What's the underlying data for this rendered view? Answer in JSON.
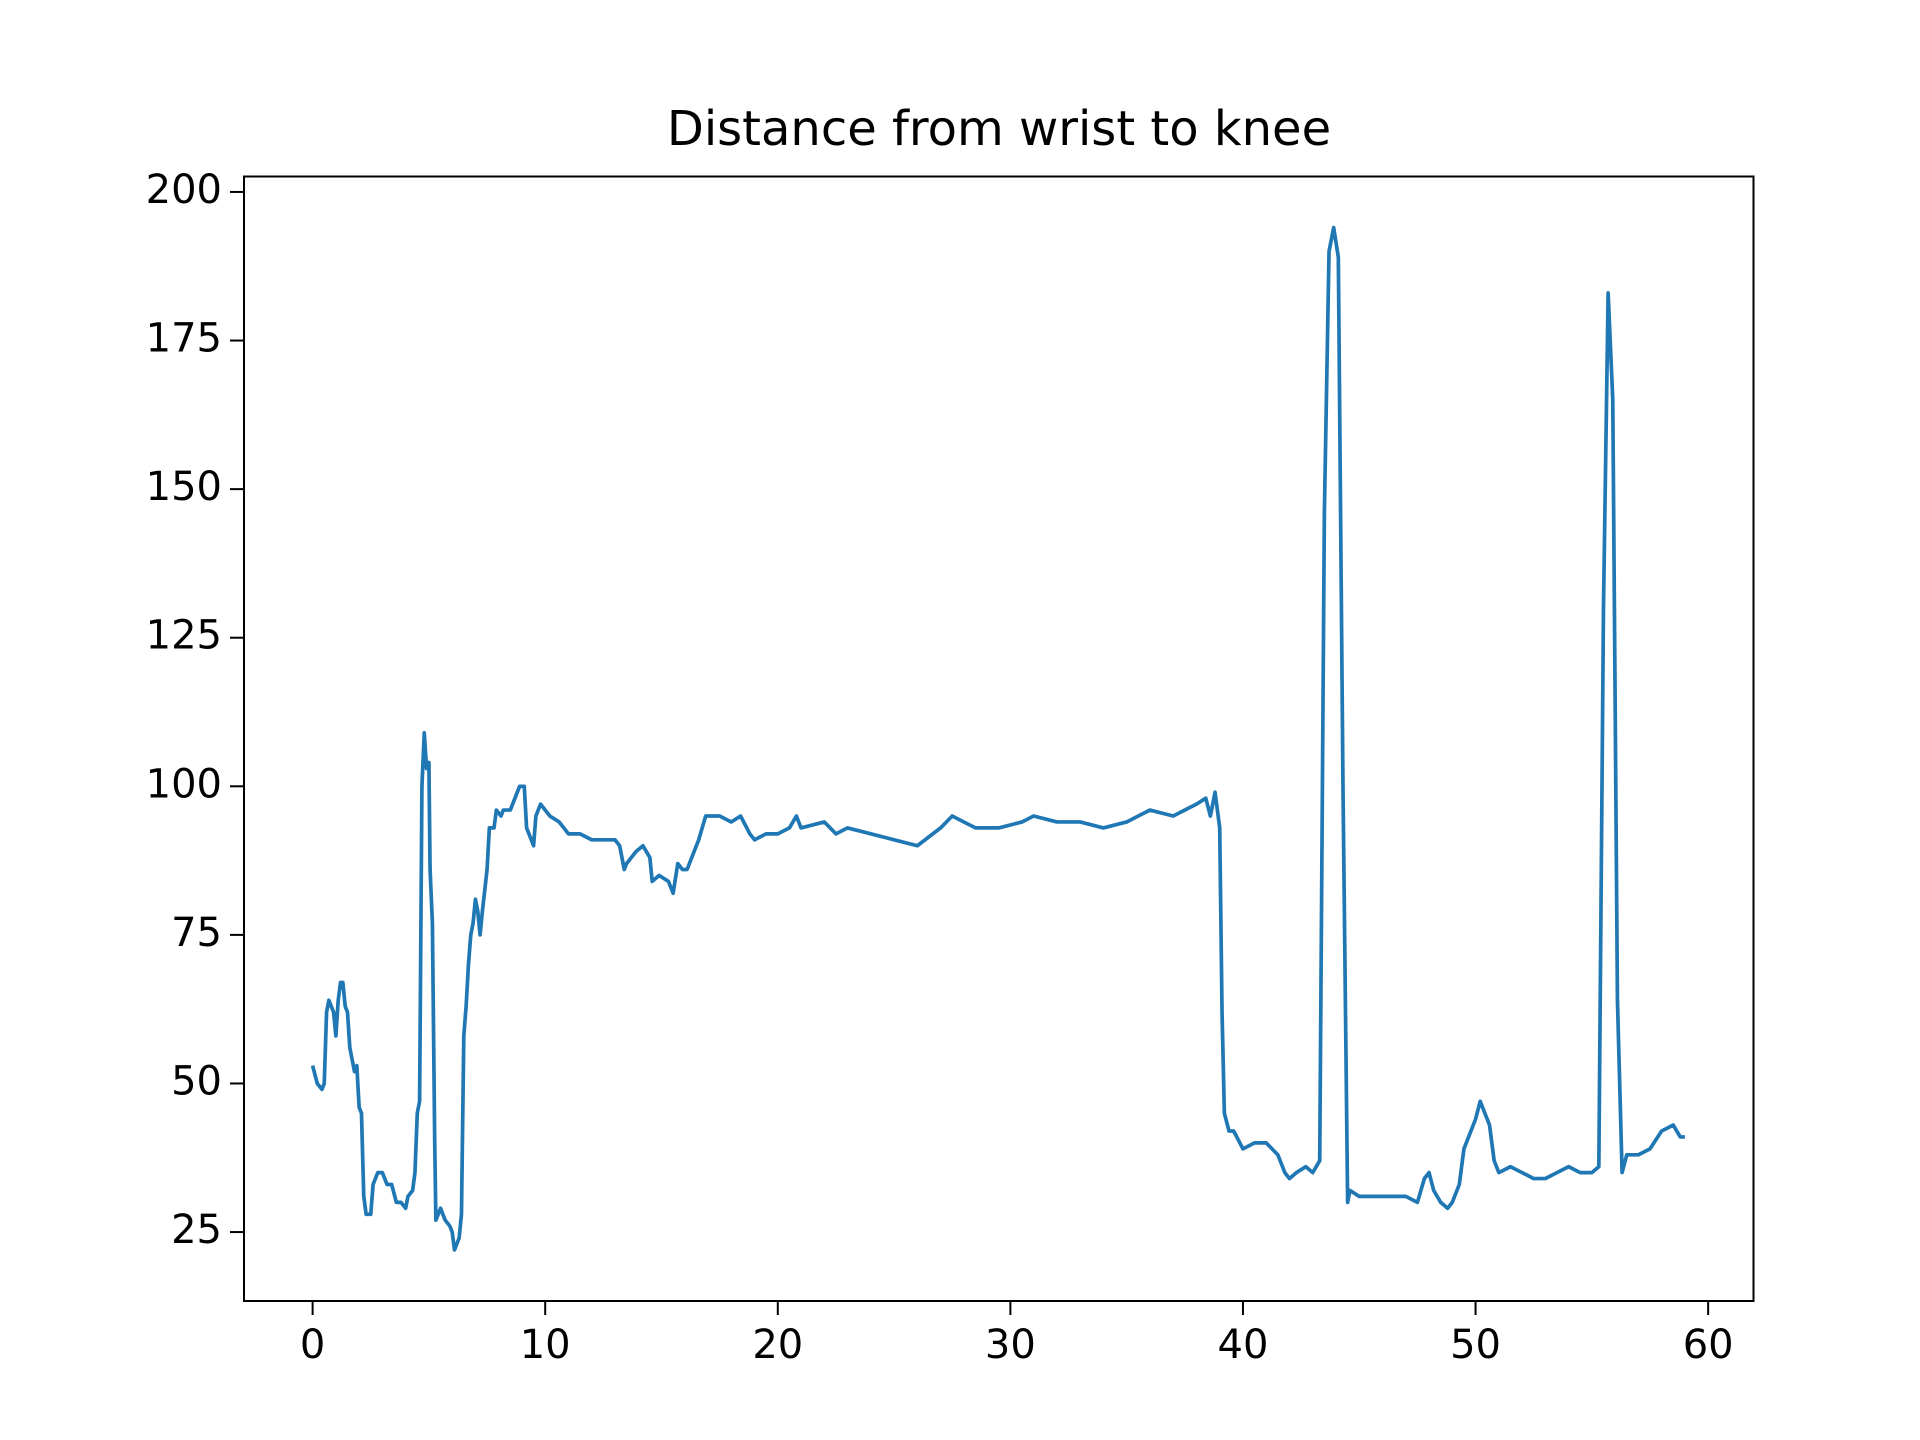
{
  "chart_data": {
    "type": "line",
    "title": "Distance from wrist to knee",
    "x": [
      0,
      0.2,
      0.4,
      0.5,
      0.6,
      0.7,
      0.9,
      1.0,
      1.1,
      1.2,
      1.3,
      1.4,
      1.5,
      1.6,
      1.8,
      1.9,
      2.0,
      2.1,
      2.2,
      2.3,
      2.5,
      2.6,
      2.8,
      3.0,
      3.1,
      3.2,
      3.4,
      3.6,
      3.8,
      4.0,
      4.1,
      4.3,
      4.4,
      4.5,
      4.6,
      4.7,
      4.8,
      4.9,
      5.0,
      5.05,
      5.15,
      5.25,
      5.3,
      5.5,
      5.7,
      5.9,
      6.0,
      6.1,
      6.2,
      6.3,
      6.4,
      6.5,
      6.6,
      6.7,
      6.8,
      6.9,
      7.0,
      7.1,
      7.2,
      7.3,
      7.5,
      7.6,
      7.8,
      7.9,
      8.1,
      8.2,
      8.5,
      8.7,
      8.9,
      9.1,
      9.2,
      9.3,
      9.5,
      9.6,
      9.8,
      10.0,
      10.2,
      10.6,
      10.8,
      11.0,
      11.5,
      12.0,
      12.5,
      13.0,
      13.2,
      13.4,
      13.5,
      13.7,
      13.9,
      14.2,
      14.5,
      14.6,
      14.9,
      15.3,
      15.5,
      15.7,
      15.9,
      16.1,
      16.4,
      16.6,
      16.9,
      17.5,
      18.0,
      18.4,
      18.8,
      19.0,
      19.5,
      20.0,
      20.5,
      20.8,
      21.0,
      22.0,
      22.5,
      23.0,
      24.0,
      25.0,
      26.0,
      27.0,
      27.5,
      28.0,
      28.5,
      29.5,
      30.5,
      31.0,
      32.0,
      33.0,
      34.0,
      35.0,
      35.5,
      36.0,
      37.0,
      37.5,
      38.0,
      38.4,
      38.6,
      38.8,
      39.0,
      39.1,
      39.2,
      39.4,
      39.6,
      40.0,
      40.5,
      41.0,
      41.5,
      41.8,
      42.0,
      42.3,
      42.7,
      43.0,
      43.3,
      43.5,
      43.7,
      43.9,
      44.1,
      44.3,
      44.5,
      44.6,
      45.0,
      46.0,
      46.5,
      47.0,
      47.5,
      47.8,
      48.0,
      48.2,
      48.5,
      48.8,
      49.0,
      49.3,
      49.5,
      49.8,
      50.0,
      50.2,
      50.4,
      50.6,
      50.8,
      51.0,
      51.5,
      52.0,
      52.5,
      53.0,
      53.5,
      54.0,
      54.5,
      55.0,
      55.3,
      55.5,
      55.7,
      55.9,
      56.0,
      56.1,
      56.3,
      56.5,
      57.0,
      57.5,
      58.0,
      58.5,
      58.8,
      59.0
    ],
    "values": [
      53,
      50,
      49,
      50,
      62,
      64,
      62,
      58,
      64,
      67,
      67,
      63,
      62,
      56,
      52,
      53,
      46,
      45,
      31,
      28,
      28,
      33,
      35,
      35,
      34,
      33,
      33,
      30,
      30,
      29,
      31,
      32,
      35,
      45,
      47,
      100,
      109,
      103,
      104,
      86,
      77,
      40,
      27,
      29,
      27,
      26,
      25,
      22,
      23,
      24,
      28,
      58,
      63,
      70,
      75,
      77,
      81,
      79,
      75,
      79,
      86,
      93,
      93,
      96,
      95,
      96,
      96,
      98,
      100,
      100,
      93,
      92,
      90,
      95,
      97,
      96,
      95,
      94,
      93,
      92,
      92,
      91,
      91,
      91,
      90,
      86,
      87,
      88,
      89,
      90,
      88,
      84,
      85,
      84,
      82,
      87,
      86,
      86,
      89,
      91,
      95,
      95,
      94,
      95,
      92,
      91,
      92,
      92,
      93,
      95,
      93,
      94,
      92,
      93,
      92,
      91,
      90,
      93,
      95,
      94,
      93,
      93,
      94,
      95,
      94,
      94,
      93,
      94,
      95,
      96,
      95,
      96,
      97,
      98,
      95,
      99,
      93,
      62,
      45,
      42,
      42,
      39,
      40,
      40,
      38,
      35,
      34,
      35,
      36,
      35,
      37,
      146,
      190,
      194,
      189,
      100,
      30,
      32,
      31,
      31,
      31,
      31,
      30,
      34,
      35,
      32,
      30,
      29,
      30,
      33,
      39,
      42,
      44,
      47,
      45,
      43,
      37,
      35,
      36,
      35,
      34,
      34,
      35,
      36,
      35,
      35,
      36,
      130,
      183,
      165,
      115,
      64,
      35,
      38,
      38,
      39,
      42,
      43,
      41,
      41
    ],
    "color": "#1f77b4",
    "xlim": [
      -2.95,
      61.95
    ],
    "xticks": [
      0,
      10,
      20,
      30,
      40,
      50,
      60
    ],
    "ylim": [
      13.4,
      202.6
    ],
    "yticks": [
      25,
      50,
      75,
      100,
      125,
      150,
      175,
      200
    ]
  }
}
